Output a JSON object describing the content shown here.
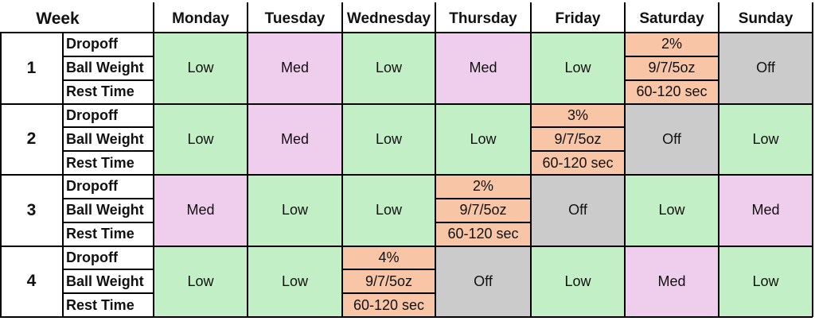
{
  "header": {
    "week_label": "Week",
    "days": [
      "Monday",
      "Tuesday",
      "Wednesday",
      "Thursday",
      "Friday",
      "Saturday",
      "Sunday"
    ]
  },
  "metric_labels": [
    "Dropoff",
    "Ball Weight",
    "Rest Time"
  ],
  "colors": {
    "Low": "#c3efc7",
    "Med": "#efcdec",
    "Off": "#cbcbcb",
    "detail": "#f8c6a7"
  },
  "weeks": [
    {
      "number": "1",
      "days": [
        {
          "type": "level",
          "value": "Low"
        },
        {
          "type": "level",
          "value": "Med"
        },
        {
          "type": "level",
          "value": "Low"
        },
        {
          "type": "level",
          "value": "Med"
        },
        {
          "type": "level",
          "value": "Low"
        },
        {
          "type": "detail",
          "dropoff": "2%",
          "ball_weight": "9/7/5oz",
          "rest_time": "60-120 sec"
        },
        {
          "type": "level",
          "value": "Off"
        }
      ]
    },
    {
      "number": "2",
      "days": [
        {
          "type": "level",
          "value": "Low"
        },
        {
          "type": "level",
          "value": "Med"
        },
        {
          "type": "level",
          "value": "Low"
        },
        {
          "type": "level",
          "value": "Low"
        },
        {
          "type": "detail",
          "dropoff": "3%",
          "ball_weight": "9/7/5oz",
          "rest_time": "60-120 sec"
        },
        {
          "type": "level",
          "value": "Off"
        },
        {
          "type": "level",
          "value": "Low"
        }
      ]
    },
    {
      "number": "3",
      "days": [
        {
          "type": "level",
          "value": "Med"
        },
        {
          "type": "level",
          "value": "Low"
        },
        {
          "type": "level",
          "value": "Low"
        },
        {
          "type": "detail",
          "dropoff": "2%",
          "ball_weight": "9/7/5oz",
          "rest_time": "60-120 sec"
        },
        {
          "type": "level",
          "value": "Off"
        },
        {
          "type": "level",
          "value": "Low"
        },
        {
          "type": "level",
          "value": "Med"
        }
      ]
    },
    {
      "number": "4",
      "days": [
        {
          "type": "level",
          "value": "Low"
        },
        {
          "type": "level",
          "value": "Low"
        },
        {
          "type": "detail",
          "dropoff": "4%",
          "ball_weight": "9/7/5oz",
          "rest_time": "60-120 sec"
        },
        {
          "type": "level",
          "value": "Off"
        },
        {
          "type": "level",
          "value": "Low"
        },
        {
          "type": "level",
          "value": "Med"
        },
        {
          "type": "level",
          "value": "Low"
        }
      ]
    }
  ]
}
